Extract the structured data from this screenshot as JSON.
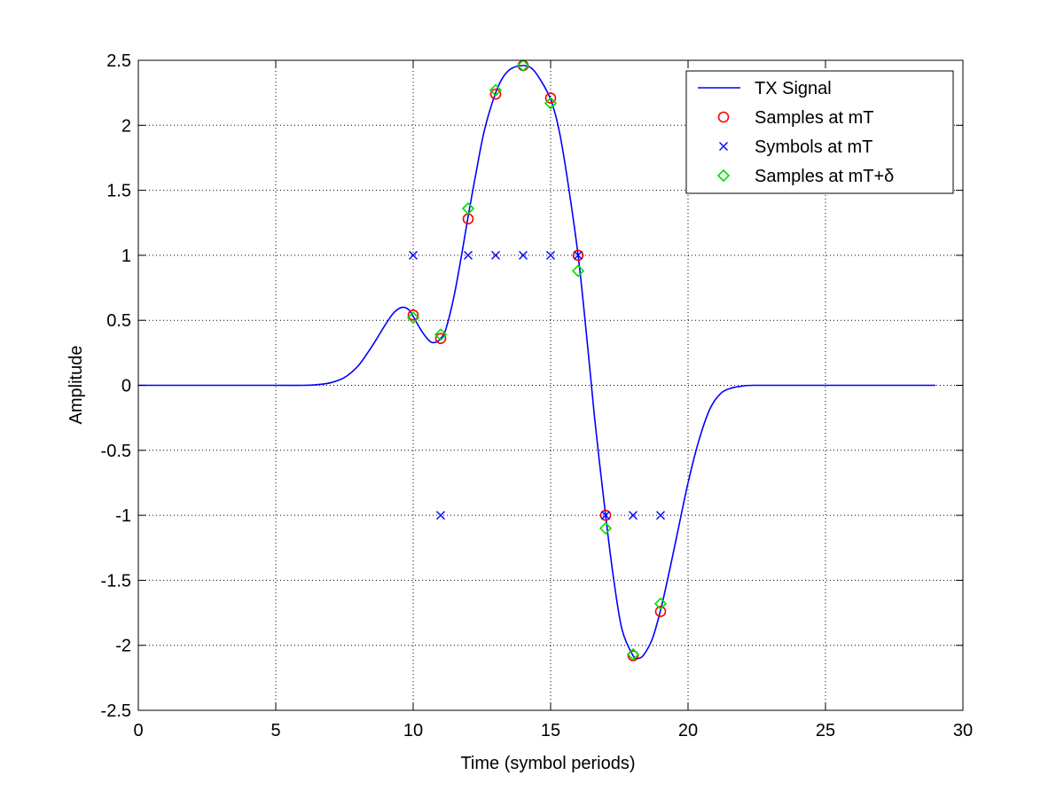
{
  "chart_data": {
    "type": "line",
    "title": "",
    "xlabel": "Time (symbol periods)",
    "ylabel": "Amplitude",
    "xlim": [
      0,
      30
    ],
    "ylim": [
      -2.5,
      2.5
    ],
    "xticks": [
      0,
      5,
      10,
      15,
      20,
      25,
      30
    ],
    "yticks": [
      -2.5,
      -2,
      -1.5,
      -1,
      -0.5,
      0,
      0.5,
      1,
      1.5,
      2,
      2.5
    ],
    "grid": true,
    "legend_position": "top-right",
    "series": [
      {
        "name": "TX Signal",
        "kind": "line",
        "color": "#0000ff",
        "points": [
          [
            0,
            0
          ],
          [
            1.5,
            0
          ],
          [
            3,
            0
          ],
          [
            5,
            0
          ],
          [
            6,
            0
          ],
          [
            6.5,
            0.005
          ],
          [
            7,
            0.02
          ],
          [
            7.5,
            0.06
          ],
          [
            8,
            0.15
          ],
          [
            8.5,
            0.3
          ],
          [
            9,
            0.47
          ],
          [
            9.3,
            0.56
          ],
          [
            9.6,
            0.6
          ],
          [
            9.85,
            0.58
          ],
          [
            10,
            0.53
          ],
          [
            10.3,
            0.42
          ],
          [
            10.6,
            0.34
          ],
          [
            10.8,
            0.33
          ],
          [
            11,
            0.36
          ],
          [
            11.2,
            0.44
          ],
          [
            11.5,
            0.7
          ],
          [
            11.8,
            1.05
          ],
          [
            12,
            1.3
          ],
          [
            12.3,
            1.65
          ],
          [
            12.6,
            1.97
          ],
          [
            13,
            2.25
          ],
          [
            13.3,
            2.38
          ],
          [
            13.6,
            2.44
          ],
          [
            14,
            2.46
          ],
          [
            14.3,
            2.44
          ],
          [
            14.6,
            2.36
          ],
          [
            15,
            2.2
          ],
          [
            15.3,
            1.97
          ],
          [
            15.6,
            1.6
          ],
          [
            16,
            1.0
          ],
          [
            16.3,
            0.4
          ],
          [
            16.6,
            -0.25
          ],
          [
            17,
            -1.0
          ],
          [
            17.3,
            -1.5
          ],
          [
            17.6,
            -1.88
          ],
          [
            18,
            -2.08
          ],
          [
            18.2,
            -2.1
          ],
          [
            18.4,
            -2.07
          ],
          [
            18.7,
            -1.95
          ],
          [
            19,
            -1.73
          ],
          [
            19.3,
            -1.45
          ],
          [
            19.6,
            -1.15
          ],
          [
            20,
            -0.75
          ],
          [
            20.4,
            -0.42
          ],
          [
            20.8,
            -0.18
          ],
          [
            21.2,
            -0.06
          ],
          [
            21.6,
            -0.02
          ],
          [
            22,
            -0.005
          ],
          [
            22.4,
            0
          ],
          [
            24,
            0
          ],
          [
            26,
            0
          ],
          [
            29,
            0
          ]
        ]
      },
      {
        "name": "Samples at mT",
        "kind": "marker",
        "marker": "circle",
        "color": "#ff0000",
        "points": [
          [
            10,
            0.54
          ],
          [
            11,
            0.36
          ],
          [
            12,
            1.28
          ],
          [
            13,
            2.24
          ],
          [
            14,
            2.46
          ],
          [
            15,
            2.21
          ],
          [
            16,
            1.0
          ],
          [
            17,
            -1.0
          ],
          [
            18,
            -2.08
          ],
          [
            19,
            -1.74
          ]
        ]
      },
      {
        "name": "Symbols at mT",
        "kind": "marker",
        "marker": "x",
        "color": "#0000ff",
        "points": [
          [
            10,
            1
          ],
          [
            11,
            -1
          ],
          [
            12,
            1
          ],
          [
            13,
            1
          ],
          [
            14,
            1
          ],
          [
            15,
            1
          ],
          [
            16,
            1
          ],
          [
            17,
            -1
          ],
          [
            18,
            -1
          ],
          [
            19,
            -1
          ]
        ]
      },
      {
        "name": "Samples at mT+δ",
        "kind": "marker",
        "marker": "diamond",
        "color": "#00dd00",
        "points": [
          [
            10,
            0.52
          ],
          [
            11,
            0.39
          ],
          [
            12,
            1.36
          ],
          [
            13,
            2.27
          ],
          [
            14,
            2.46
          ],
          [
            15,
            2.17
          ],
          [
            16,
            0.88
          ],
          [
            17,
            -1.1
          ],
          [
            18,
            -2.07
          ],
          [
            19,
            -1.68
          ]
        ]
      }
    ]
  }
}
